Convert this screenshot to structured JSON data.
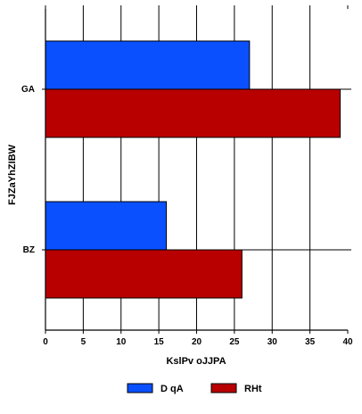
{
  "chart_data": {
    "type": "bar",
    "orientation": "horizontal",
    "categories": [
      "GA",
      "BZ"
    ],
    "series": [
      {
        "name": "D qA",
        "values": [
          27,
          16
        ],
        "color": "#0a50ff"
      },
      {
        "name": "RHt",
        "values": [
          39,
          26
        ],
        "color": "#b80000"
      }
    ],
    "xlabel": "KslPv oJJPA",
    "ylabel": "FJZaYhZIBW",
    "xlim": [
      0,
      40
    ],
    "xticks": [
      0,
      5,
      10,
      15,
      20,
      25,
      30,
      35,
      40
    ],
    "grid": true,
    "legend_position": "bottom"
  }
}
